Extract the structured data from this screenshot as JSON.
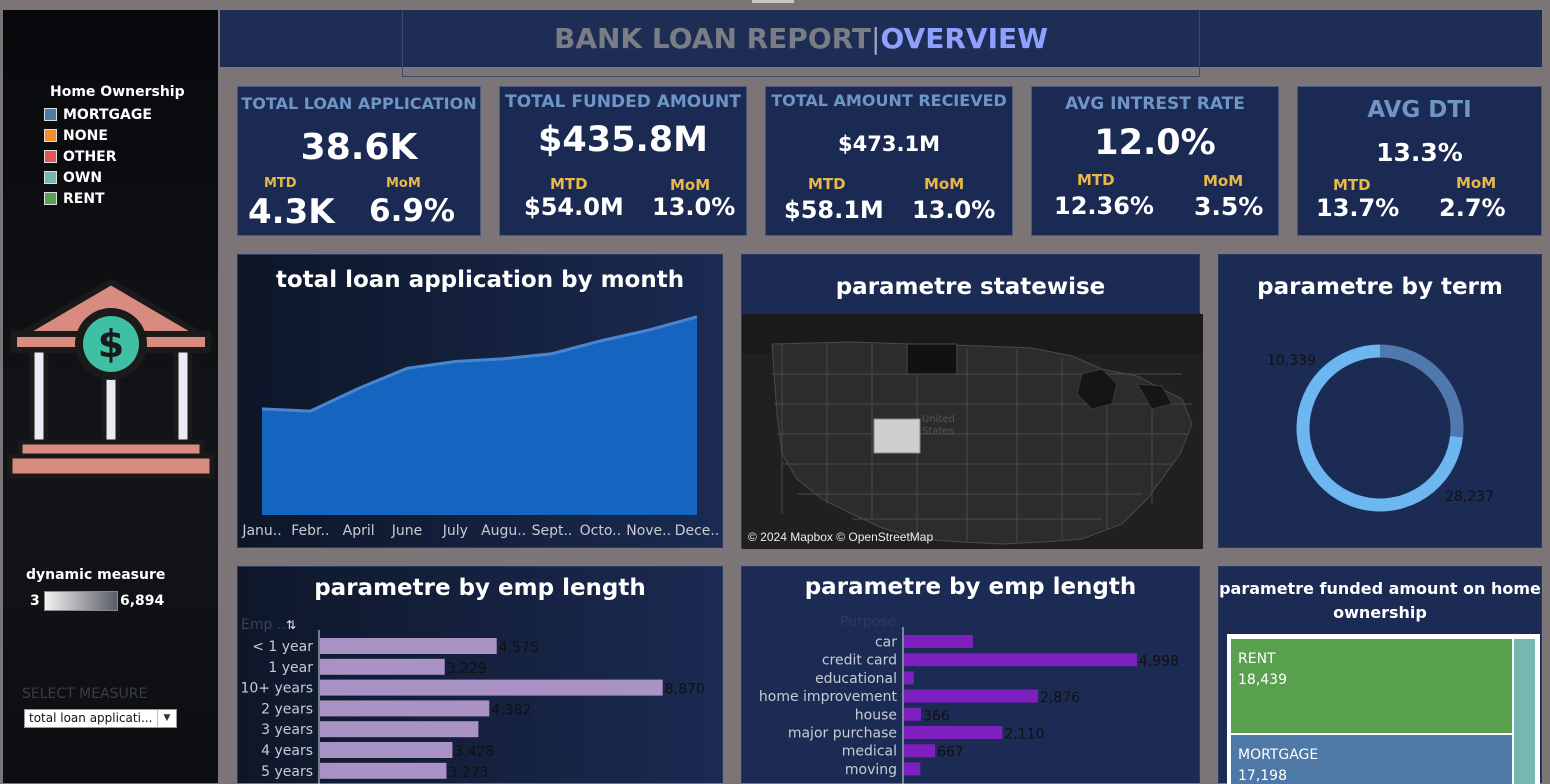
{
  "header": {
    "title_part1": "BANK LOAN REPORT",
    "separator": "|",
    "title_part2": "OVERVIEW"
  },
  "sidebar": {
    "legend_title": "Home Ownership",
    "legend_items": [
      {
        "label": "MORTGAGE",
        "color": "#4e79a7"
      },
      {
        "label": "NONE",
        "color": "#f28e2b"
      },
      {
        "label": "OTHER",
        "color": "#e15759"
      },
      {
        "label": "OWN",
        "color": "#76b7b2"
      },
      {
        "label": "RENT",
        "color": "#59a14f"
      }
    ],
    "logo_icon": "bank-dollar-icon",
    "dynamic_measure": {
      "title": "dynamic measure",
      "min": "3",
      "max": "6,894"
    },
    "select_measure": {
      "label": "SELECT MEASURE",
      "value": "total loan applicati..."
    }
  },
  "kpis": [
    {
      "title": "TOTAL LOAN APPLICATION",
      "value": "38.6K",
      "mtd_label": "MTD",
      "mtd": "4.3K",
      "mom_label": "MoM",
      "mom": "6.9%"
    },
    {
      "title": "TOTAL FUNDED AMOUNT",
      "value": "$435.8M",
      "mtd_label": "MTD",
      "mtd": "$54.0M",
      "mom_label": "MoM",
      "mom": "13.0%"
    },
    {
      "title": "TOTAL AMOUNT RECIEVED",
      "value": "$473.1M",
      "mtd_label": "MTD",
      "mtd": "$58.1M",
      "mom_label": "MoM",
      "mom": "13.0%"
    },
    {
      "title": "AVG INTREST RATE",
      "value": "12.0%",
      "mtd_label": "MTD",
      "mtd": "12.36%",
      "mom_label": "MoM",
      "mom": "3.5%"
    },
    {
      "title": "AVG DTI",
      "value": "13.3%",
      "mtd_label": "MTD",
      "mtd": "13.7%",
      "mom_label": "MoM",
      "mom": "2.7%"
    }
  ],
  "panels": {
    "monthly": {
      "title": "total loan application by month"
    },
    "map": {
      "title": "parametre statewise",
      "credit": "© 2024 Mapbox © OpenStreetMap",
      "label_line1": "United",
      "label_line2": "States"
    },
    "term": {
      "title": "parametre by term"
    },
    "emp": {
      "title": "parametre by emp length",
      "axis_header": "Emp .."
    },
    "purpose": {
      "title": "parametre by emp length",
      "axis_header": "Purpose"
    },
    "home": {
      "title_line1": "parametre funded amount on home",
      "title_line2": "ownership"
    }
  },
  "chart_data": [
    {
      "type": "area",
      "title": "total loan application by month",
      "categories": [
        "Janu..",
        "Febr..",
        "April",
        "June",
        "July",
        "Augu..",
        "Sept..",
        "Octo..",
        "Nove..",
        "Dece.."
      ],
      "values": [
        2330,
        2280,
        2780,
        3220,
        3370,
        3430,
        3540,
        3820,
        4060,
        4350
      ],
      "ylim": [
        0,
        4500
      ],
      "color": "#1565c0"
    },
    {
      "type": "pie",
      "title": "parametre by term",
      "labels": [
        "10,339",
        "28,237"
      ],
      "values": [
        10339,
        28237
      ],
      "colors": [
        "#6cb7f0",
        "#4f79ad"
      ]
    },
    {
      "type": "bar",
      "title": "parametre by emp length",
      "categories": [
        "< 1 year",
        "1 year",
        "10+ years",
        "2 years",
        "3 years",
        "4 years",
        "5 years"
      ],
      "values": [
        4575,
        3229,
        8870,
        4382,
        4100,
        3428,
        3273
      ],
      "labels": [
        "4,575",
        "3,229",
        "8,870",
        "4,382",
        "",
        "3,428",
        "3,273"
      ],
      "xlim": [
        0,
        9500
      ],
      "color": "#a992c4"
    },
    {
      "type": "bar",
      "title": "parametre by emp length",
      "categories": [
        "car",
        "credit card",
        "educational",
        "home improvement",
        "house",
        "major purchase",
        "medical",
        "moving"
      ],
      "values": [
        1480,
        4998,
        210,
        2876,
        366,
        2110,
        667,
        350
      ],
      "labels": [
        "",
        "4,998",
        "",
        "2,876",
        "366",
        "2,110",
        "667",
        ""
      ],
      "xlim": [
        0,
        5300
      ],
      "color": "#7e1fbf"
    },
    {
      "type": "treemap",
      "title": "parametre funded amount on home ownership",
      "items": [
        {
          "label": "RENT",
          "value": "18,439",
          "color": "#59a14f"
        },
        {
          "label": "MORTGAGE",
          "value": "17,198",
          "color": "#4e79a7"
        }
      ]
    }
  ]
}
